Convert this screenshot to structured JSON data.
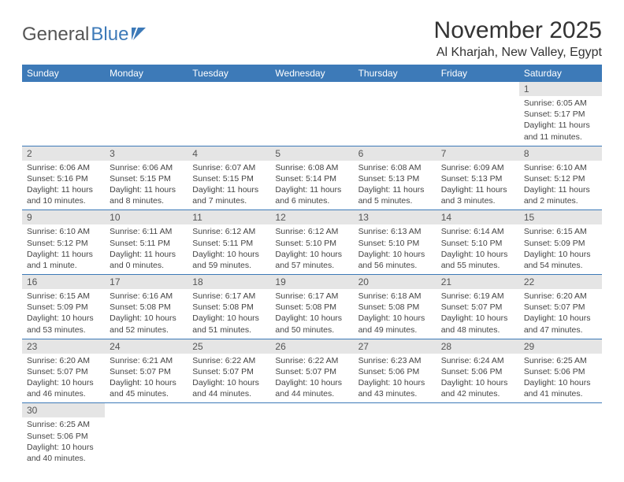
{
  "logo": {
    "part1": "General",
    "part2": "Blue"
  },
  "title": "November 2025",
  "location": "Al Kharjah, New Valley, Egypt",
  "colors": {
    "header_bg": "#3d7ab8",
    "header_fg": "#ffffff",
    "daynum_bg": "#e5e5e5",
    "rule": "#3d7ab8",
    "text": "#444444"
  },
  "weekdays": [
    "Sunday",
    "Monday",
    "Tuesday",
    "Wednesday",
    "Thursday",
    "Friday",
    "Saturday"
  ],
  "weeks": [
    [
      null,
      null,
      null,
      null,
      null,
      null,
      {
        "n": "1",
        "sunrise": "Sunrise: 6:05 AM",
        "sunset": "Sunset: 5:17 PM",
        "daylight": "Daylight: 11 hours and 11 minutes."
      }
    ],
    [
      {
        "n": "2",
        "sunrise": "Sunrise: 6:06 AM",
        "sunset": "Sunset: 5:16 PM",
        "daylight": "Daylight: 11 hours and 10 minutes."
      },
      {
        "n": "3",
        "sunrise": "Sunrise: 6:06 AM",
        "sunset": "Sunset: 5:15 PM",
        "daylight": "Daylight: 11 hours and 8 minutes."
      },
      {
        "n": "4",
        "sunrise": "Sunrise: 6:07 AM",
        "sunset": "Sunset: 5:15 PM",
        "daylight": "Daylight: 11 hours and 7 minutes."
      },
      {
        "n": "5",
        "sunrise": "Sunrise: 6:08 AM",
        "sunset": "Sunset: 5:14 PM",
        "daylight": "Daylight: 11 hours and 6 minutes."
      },
      {
        "n": "6",
        "sunrise": "Sunrise: 6:08 AM",
        "sunset": "Sunset: 5:13 PM",
        "daylight": "Daylight: 11 hours and 5 minutes."
      },
      {
        "n": "7",
        "sunrise": "Sunrise: 6:09 AM",
        "sunset": "Sunset: 5:13 PM",
        "daylight": "Daylight: 11 hours and 3 minutes."
      },
      {
        "n": "8",
        "sunrise": "Sunrise: 6:10 AM",
        "sunset": "Sunset: 5:12 PM",
        "daylight": "Daylight: 11 hours and 2 minutes."
      }
    ],
    [
      {
        "n": "9",
        "sunrise": "Sunrise: 6:10 AM",
        "sunset": "Sunset: 5:12 PM",
        "daylight": "Daylight: 11 hours and 1 minute."
      },
      {
        "n": "10",
        "sunrise": "Sunrise: 6:11 AM",
        "sunset": "Sunset: 5:11 PM",
        "daylight": "Daylight: 11 hours and 0 minutes."
      },
      {
        "n": "11",
        "sunrise": "Sunrise: 6:12 AM",
        "sunset": "Sunset: 5:11 PM",
        "daylight": "Daylight: 10 hours and 59 minutes."
      },
      {
        "n": "12",
        "sunrise": "Sunrise: 6:12 AM",
        "sunset": "Sunset: 5:10 PM",
        "daylight": "Daylight: 10 hours and 57 minutes."
      },
      {
        "n": "13",
        "sunrise": "Sunrise: 6:13 AM",
        "sunset": "Sunset: 5:10 PM",
        "daylight": "Daylight: 10 hours and 56 minutes."
      },
      {
        "n": "14",
        "sunrise": "Sunrise: 6:14 AM",
        "sunset": "Sunset: 5:10 PM",
        "daylight": "Daylight: 10 hours and 55 minutes."
      },
      {
        "n": "15",
        "sunrise": "Sunrise: 6:15 AM",
        "sunset": "Sunset: 5:09 PM",
        "daylight": "Daylight: 10 hours and 54 minutes."
      }
    ],
    [
      {
        "n": "16",
        "sunrise": "Sunrise: 6:15 AM",
        "sunset": "Sunset: 5:09 PM",
        "daylight": "Daylight: 10 hours and 53 minutes."
      },
      {
        "n": "17",
        "sunrise": "Sunrise: 6:16 AM",
        "sunset": "Sunset: 5:08 PM",
        "daylight": "Daylight: 10 hours and 52 minutes."
      },
      {
        "n": "18",
        "sunrise": "Sunrise: 6:17 AM",
        "sunset": "Sunset: 5:08 PM",
        "daylight": "Daylight: 10 hours and 51 minutes."
      },
      {
        "n": "19",
        "sunrise": "Sunrise: 6:17 AM",
        "sunset": "Sunset: 5:08 PM",
        "daylight": "Daylight: 10 hours and 50 minutes."
      },
      {
        "n": "20",
        "sunrise": "Sunrise: 6:18 AM",
        "sunset": "Sunset: 5:08 PM",
        "daylight": "Daylight: 10 hours and 49 minutes."
      },
      {
        "n": "21",
        "sunrise": "Sunrise: 6:19 AM",
        "sunset": "Sunset: 5:07 PM",
        "daylight": "Daylight: 10 hours and 48 minutes."
      },
      {
        "n": "22",
        "sunrise": "Sunrise: 6:20 AM",
        "sunset": "Sunset: 5:07 PM",
        "daylight": "Daylight: 10 hours and 47 minutes."
      }
    ],
    [
      {
        "n": "23",
        "sunrise": "Sunrise: 6:20 AM",
        "sunset": "Sunset: 5:07 PM",
        "daylight": "Daylight: 10 hours and 46 minutes."
      },
      {
        "n": "24",
        "sunrise": "Sunrise: 6:21 AM",
        "sunset": "Sunset: 5:07 PM",
        "daylight": "Daylight: 10 hours and 45 minutes."
      },
      {
        "n": "25",
        "sunrise": "Sunrise: 6:22 AM",
        "sunset": "Sunset: 5:07 PM",
        "daylight": "Daylight: 10 hours and 44 minutes."
      },
      {
        "n": "26",
        "sunrise": "Sunrise: 6:22 AM",
        "sunset": "Sunset: 5:07 PM",
        "daylight": "Daylight: 10 hours and 44 minutes."
      },
      {
        "n": "27",
        "sunrise": "Sunrise: 6:23 AM",
        "sunset": "Sunset: 5:06 PM",
        "daylight": "Daylight: 10 hours and 43 minutes."
      },
      {
        "n": "28",
        "sunrise": "Sunrise: 6:24 AM",
        "sunset": "Sunset: 5:06 PM",
        "daylight": "Daylight: 10 hours and 42 minutes."
      },
      {
        "n": "29",
        "sunrise": "Sunrise: 6:25 AM",
        "sunset": "Sunset: 5:06 PM",
        "daylight": "Daylight: 10 hours and 41 minutes."
      }
    ],
    [
      {
        "n": "30",
        "sunrise": "Sunrise: 6:25 AM",
        "sunset": "Sunset: 5:06 PM",
        "daylight": "Daylight: 10 hours and 40 minutes."
      },
      null,
      null,
      null,
      null,
      null,
      null
    ]
  ]
}
